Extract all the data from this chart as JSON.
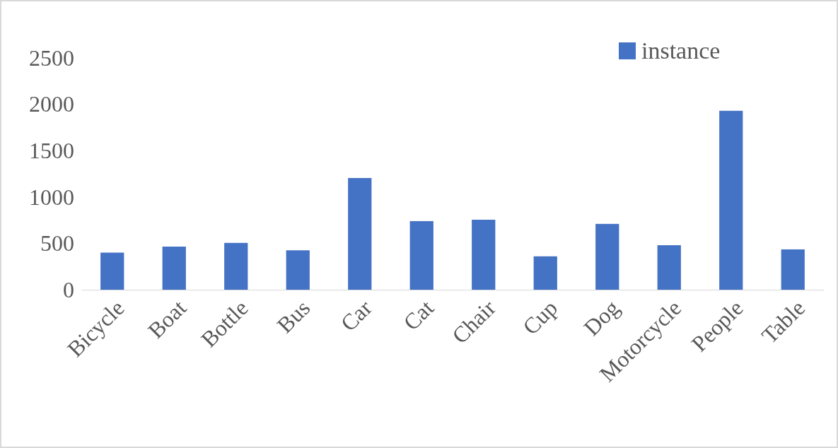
{
  "chart_data": {
    "type": "bar",
    "categories": [
      "Bicycle",
      "Boat",
      "Bottle",
      "Bus",
      "Car",
      "Cat",
      "Chair",
      "Cup",
      "Dog",
      "Motorcycle",
      "People",
      "Table"
    ],
    "series": [
      {
        "name": "instance",
        "color": "#4472c4",
        "values": [
          400,
          465,
          505,
          425,
          1205,
          740,
          755,
          360,
          710,
          480,
          1930,
          435
        ]
      }
    ],
    "ylim": [
      0,
      2500
    ],
    "yticks": [
      0,
      500,
      1000,
      1500,
      2000,
      2500
    ],
    "grid": false,
    "legend": "top right"
  }
}
